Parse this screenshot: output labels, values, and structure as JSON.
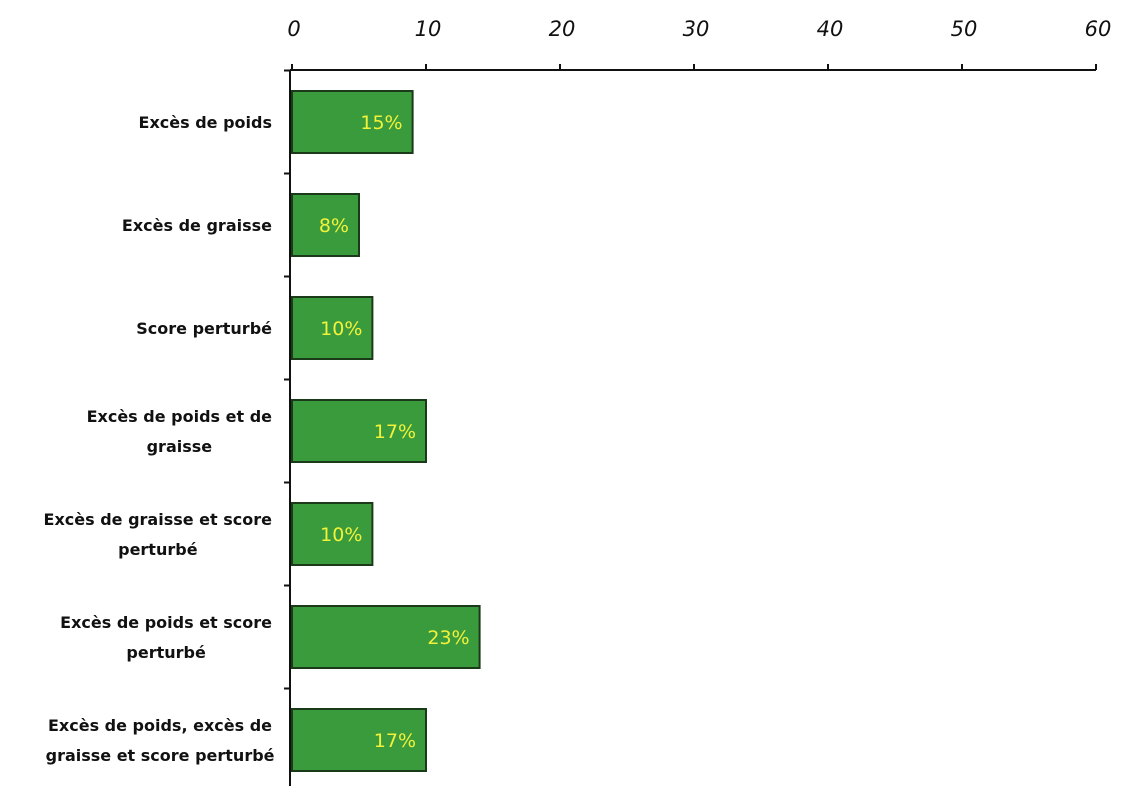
{
  "chart_data": {
    "type": "bar",
    "orientation": "horizontal",
    "categories": [
      [
        "Excès de poids"
      ],
      [
        "Excès de graisse"
      ],
      [
        "Score perturbé"
      ],
      [
        "Excès de poids et de",
        "graisse"
      ],
      [
        "Excès de graisse et score",
        "perturbé"
      ],
      [
        "Excès de poids et score",
        "perturbé"
      ],
      [
        "Excès de poids, excès de",
        "graisse et score perturbé"
      ]
    ],
    "values": [
      9,
      5,
      6,
      10,
      6,
      14,
      10
    ],
    "data_labels": [
      "15%",
      "8%",
      "10%",
      "17%",
      "10%",
      "23%",
      "17%"
    ],
    "xlim": [
      0,
      60
    ],
    "x_ticks": [
      "0",
      "10",
      "20",
      "30",
      "40",
      "50",
      "60"
    ],
    "x_axis_position": "top",
    "grid": false,
    "colors": {
      "bar_fill": "#3a9b3c",
      "bar_stroke": "#1a3a1a",
      "data_label": "#f2f23a"
    }
  }
}
